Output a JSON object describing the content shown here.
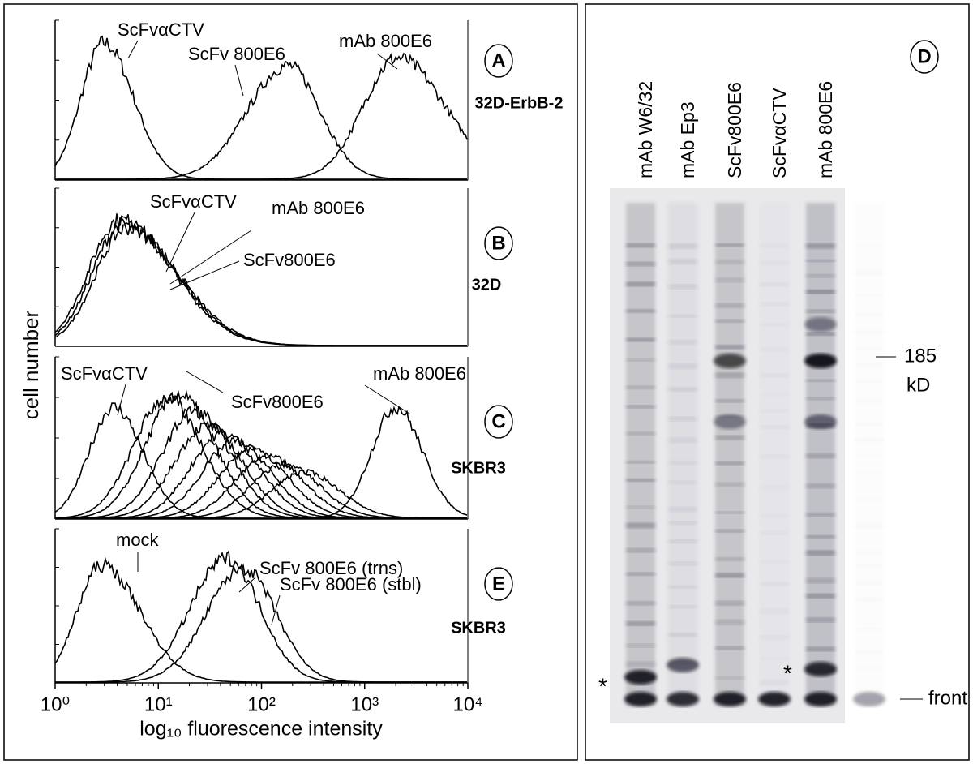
{
  "figure": {
    "y_axis_label": "cell number",
    "x_axis_label": "log₁₀ fluorescence intensity",
    "x_ticks": [
      "10⁰",
      "10¹",
      "10²",
      "10³",
      "10⁴"
    ],
    "panels": [
      {
        "letter": "A",
        "cell_line": "32D-ErbB-2",
        "labels": [
          "ScFvαCTV",
          "ScFv 800E6",
          "mAb 800E6"
        ]
      },
      {
        "letter": "B",
        "cell_line": "32D",
        "labels": [
          "ScFvαCTV",
          "mAb 800E6",
          "ScFv800E6"
        ]
      },
      {
        "letter": "C",
        "cell_line": "SKBR3",
        "labels": [
          "ScFvαCTV",
          "ScFv800E6",
          "mAb 800E6"
        ]
      },
      {
        "letter": "E",
        "cell_line": "SKBR3",
        "labels": [
          "mock",
          "ScFv 800E6 (trns)",
          "ScFv 800E6 (stbl)"
        ]
      }
    ],
    "gel": {
      "letter": "D",
      "lanes": [
        "mAb W6/32",
        "mAb Ep3",
        "ScFv800E6",
        "ScFvαCTV",
        "mAb 800E6"
      ],
      "marker": "185",
      "marker_unit": "kD",
      "front": "front",
      "asterisks": [
        "*",
        "*"
      ]
    }
  }
}
